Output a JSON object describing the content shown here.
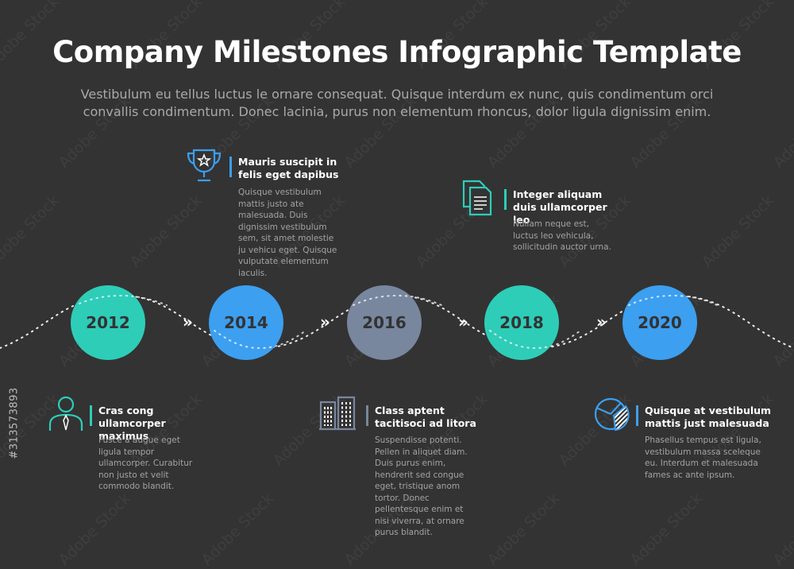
{
  "header": {
    "title": "Company Milestones Infographic Template",
    "subtitle": "Vestibulum eu tellus luctus le ornare consequat. Quisque interdum ex nunc, quis condimentum orci convallis condimentum. Donec lacinia, purus non elementum rhoncus, dolor ligula dignissim enim."
  },
  "timeline": [
    {
      "year": "2012",
      "color": "#2ecdb8"
    },
    {
      "year": "2014",
      "color": "#3c9ff0"
    },
    {
      "year": "2016",
      "color": "#78879e"
    },
    {
      "year": "2018",
      "color": "#2ecdb8"
    },
    {
      "year": "2020",
      "color": "#3c9ff0"
    }
  ],
  "arrow_glyph": "»",
  "milestones": {
    "m2012": {
      "icon": "person-icon",
      "heading": "Cras cong ullamcorper maximus",
      "text": "Fusce a augue eget ligula tempor ullamcorper. Curabitur non justo et velit commodo blandit."
    },
    "m2014": {
      "icon": "trophy-icon",
      "heading": "Mauris suscipit in felis eget dapibus",
      "text": "Quisque vestibulum mattis justo ate malesuada. Duis dignissim vestibulum sem, sit amet molestie ju vehicu eget. Quisque vulputate elementum iaculis."
    },
    "m2016": {
      "icon": "buildings-icon",
      "heading": "Class aptent tacitisoci ad litora",
      "text": "Suspendisse potenti. Pellen in aliquet diam. Duis purus enim, hendrerit sed congue eget, tristique anom tortor. Donec pellentesque enim et nisi viverra, at ornare purus blandit."
    },
    "m2018": {
      "icon": "documents-icon",
      "heading": "Integer aliquam duis ullamcorper leo",
      "text": "Nullam neque est, luctus leo vehicula, sollicitudin auctor urna."
    },
    "m2020": {
      "icon": "pie-chart-icon",
      "heading": "Quisque at vestibulum mattis just malesuada",
      "text": "Phasellus tempus est ligula, vestibulum massa sceleque eu. Interdum et malesuada fames ac ante ipsum."
    }
  },
  "stock_id": "#313573893",
  "watermark": "Adobe Stock",
  "colors": {
    "background": "#333333",
    "teal": "#2ecdb8",
    "blue": "#3c9ff0",
    "gray": "#78879e"
  }
}
